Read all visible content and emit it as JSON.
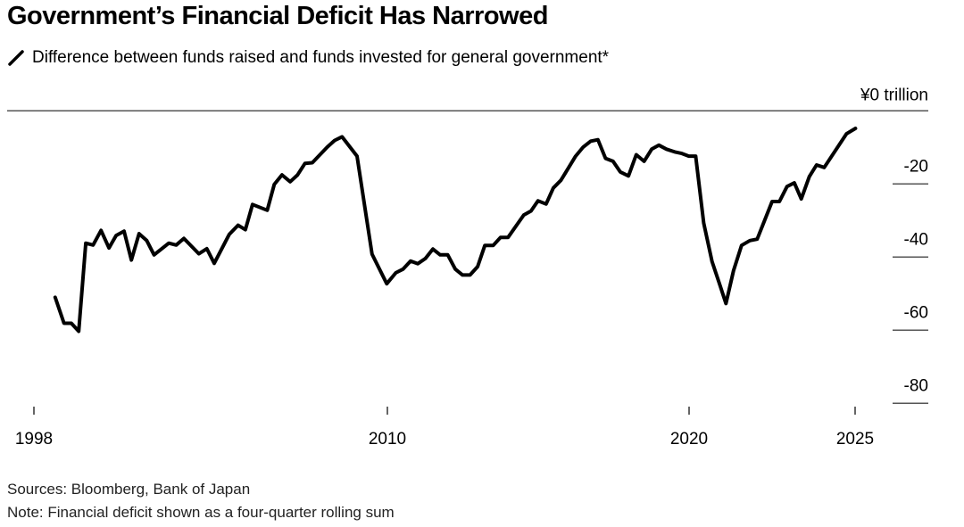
{
  "chart_data": {
    "type": "line",
    "title": "Government’s Financial Deficit Has Narrowed",
    "subtitle": "Difference between funds raised and funds invested for general government*",
    "y_unit_label": "¥0 trillion",
    "ylim": [
      -80,
      0
    ],
    "y_ticks": [
      0,
      -20,
      -40,
      -60,
      -80
    ],
    "y_tick_labels": [
      "¥0 trillion",
      "-20",
      "-40",
      "-60",
      "-80"
    ],
    "x_ticks": [
      1998,
      2010,
      2020,
      2025
    ],
    "x_tick_labels": [
      "1998",
      "2010",
      "2020",
      "2025"
    ],
    "grid": "horizontal",
    "legend": "top-left",
    "series": [
      {
        "name": "Difference between funds raised and funds invested for general government*",
        "color": "#000000",
        "x": [
          1998.72,
          1999.02,
          1999.27,
          1999.52,
          1999.76,
          2000.01,
          2000.28,
          2000.55,
          2000.79,
          2001.06,
          2001.31,
          2001.57,
          2001.83,
          2002.08,
          2002.58,
          2002.83,
          2003.09,
          2003.6,
          2003.87,
          2004.12,
          2004.63,
          2004.93,
          2005.18,
          2005.42,
          2005.92,
          2006.16,
          2006.42,
          2006.7,
          2006.95,
          2007.2,
          2007.45,
          2007.96,
          2008.21,
          2008.46,
          2008.97,
          2009.27,
          2009.48,
          2009.98,
          2010.28,
          2010.52,
          2010.77,
          2011.01,
          2011.26,
          2011.51,
          2011.75,
          2012.0,
          2012.25,
          2012.49,
          2012.74,
          2012.99,
          2013.23,
          2013.51,
          2013.75,
          2014.0,
          2014.52,
          2014.76,
          2014.99,
          2015.26,
          2015.5,
          2015.75,
          2016.24,
          2016.49,
          2016.74,
          2016.98,
          2017.23,
          2017.48,
          2017.72,
          2017.99,
          2018.25,
          2018.51,
          2018.76,
          2019.0,
          2019.25,
          2019.55,
          2019.74,
          2019.99,
          2020.2,
          2020.44,
          2020.69,
          2020.93,
          2021.11,
          2021.34,
          2021.58,
          2021.83,
          2022.05,
          2022.5,
          2022.72,
          2022.95,
          2023.17,
          2023.38,
          2023.62,
          2023.84,
          2024.07,
          2024.74,
          2025.01
        ],
        "y": [
          -51.0,
          -58.1,
          -58.1,
          -60.3,
          -36.2,
          -36.7,
          -32.7,
          -37.5,
          -34.1,
          -32.9,
          -40.8,
          -33.6,
          -35.5,
          -39.4,
          -36.2,
          -36.7,
          -34.9,
          -39.1,
          -37.7,
          -41.7,
          -33.8,
          -31.3,
          -32.5,
          -25.6,
          -27.2,
          -20.1,
          -17.5,
          -19.4,
          -17.5,
          -14.4,
          -14.2,
          -9.9,
          -8.1,
          -7.1,
          -12.4,
          -28.2,
          -39.2,
          -47.3,
          -44.3,
          -43.3,
          -41.1,
          -41.8,
          -40.4,
          -37.8,
          -39.4,
          -39.4,
          -43.3,
          -44.9,
          -44.9,
          -42.6,
          -36.8,
          -36.8,
          -34.6,
          -34.6,
          -28.5,
          -27.4,
          -24.6,
          -25.5,
          -21.1,
          -19.0,
          -12.4,
          -9.9,
          -8.3,
          -7.9,
          -13.0,
          -13.8,
          -16.7,
          -17.8,
          -12.0,
          -13.8,
          -10.5,
          -9.4,
          -10.5,
          -11.3,
          -11.6,
          -12.4,
          -12.4,
          -30.7,
          -41.2,
          -47.7,
          -52.7,
          -43.7,
          -36.8,
          -35.5,
          -35.1,
          -24.8,
          -24.8,
          -20.7,
          -19.7,
          -24.1,
          -18.0,
          -14.8,
          -15.5,
          -6.3,
          -4.8
        ]
      }
    ]
  },
  "footer": {
    "sources": "Sources: Bloomberg, Bank of Japan",
    "note": "Note: Financial deficit shown as a four-quarter rolling sum"
  }
}
